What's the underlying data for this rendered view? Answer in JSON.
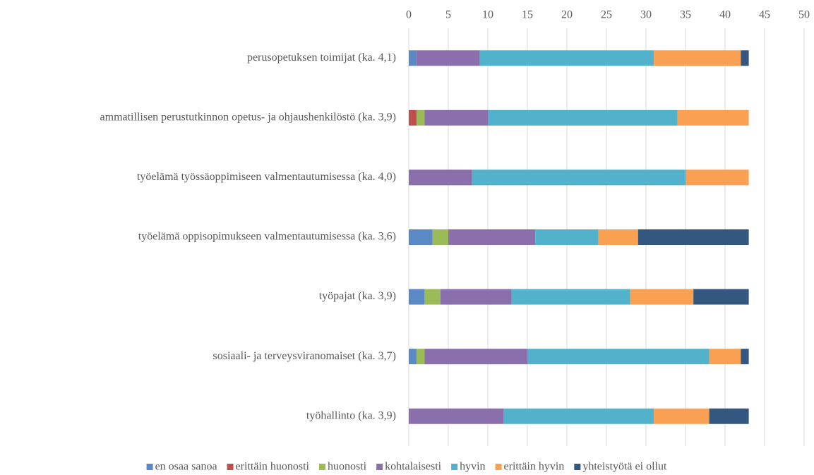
{
  "chart_data": {
    "type": "stacked_bar_horizontal",
    "categories": [
      "perusopetuksen toimijat (ka. 4,1)",
      "ammatillisen perustutkinnon opetus- ja ohjaushenkilöstö (ka. 3,9)",
      "työelämä työssäoppimiseen valmentautumisessa (ka. 4,0)",
      "työelämä oppisopimukseen valmentautumisessa (ka. 3,6)",
      "työpajat (ka. 3,9)",
      "sosiaali- ja terveysviranomaiset (ka. 3,7)",
      "työhallinto (ka. 3,9)"
    ],
    "series": [
      {
        "name": "en osaa sanoa",
        "color": "#5b89c5",
        "values": [
          1,
          0,
          0,
          3,
          2,
          1,
          0
        ]
      },
      {
        "name": "erittäin huonosti",
        "color": "#c0504d",
        "values": [
          0,
          1,
          0,
          0,
          0,
          0,
          0
        ]
      },
      {
        "name": "huonosti",
        "color": "#9bbb59",
        "values": [
          0,
          1,
          0,
          2,
          2,
          1,
          0
        ]
      },
      {
        "name": "kohtalaisesti",
        "color": "#8a6fac",
        "values": [
          8,
          8,
          8,
          11,
          9,
          13,
          12
        ]
      },
      {
        "name": "hyvin",
        "color": "#52b2cc",
        "values": [
          22,
          24,
          27,
          8,
          15,
          23,
          19
        ]
      },
      {
        "name": "erittäin hyvin",
        "color": "#f9a053",
        "values": [
          11,
          9,
          8,
          5,
          8,
          4,
          7
        ]
      },
      {
        "name": "yhteistyötä ei ollut",
        "color": "#34577f",
        "values": [
          1,
          0,
          0,
          14,
          7,
          1,
          5
        ]
      }
    ],
    "xlim": [
      0,
      50
    ],
    "xticks": [
      0,
      5,
      10,
      15,
      20,
      25,
      30,
      35,
      40,
      45,
      50
    ],
    "grid": true,
    "legend": "bottom"
  }
}
